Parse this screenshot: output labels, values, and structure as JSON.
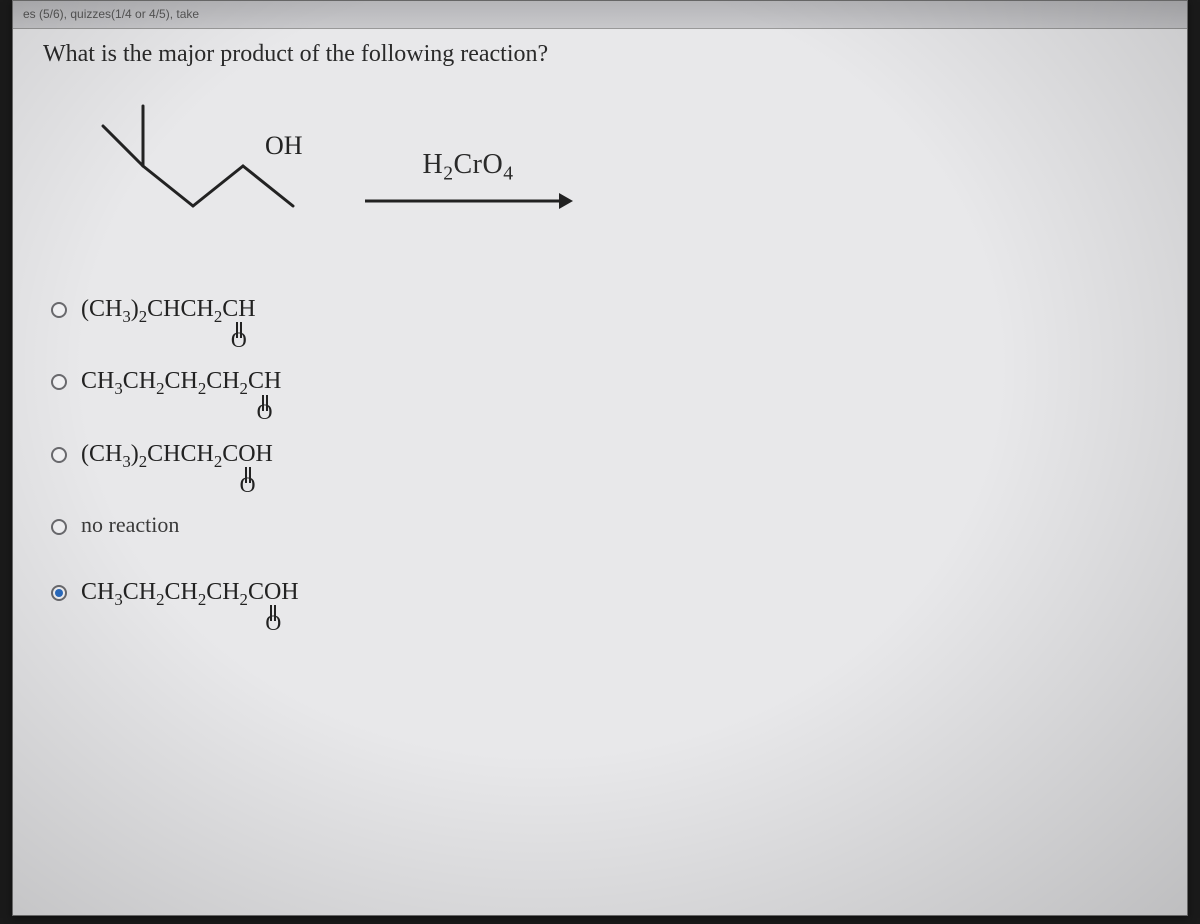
{
  "top_strip": "es (5/6), quizzes(1/4 or 4/5), take",
  "question": "What is the major product of the following reaction?",
  "structure": {
    "oh_label": "OH",
    "line_color": "#222222",
    "line_width": 3
  },
  "reagent": {
    "formula_html": "H<sub class=\"sub\">2</sub>CrO<sub class=\"sub\">4</sub>"
  },
  "arrow": {
    "length": 200,
    "color": "#222222",
    "stroke": 3
  },
  "options": {
    "a": {
      "pre": "(CH",
      "sub1": "3",
      "mid1": ")",
      "sub2": "2",
      "mid2": "CHCH",
      "sub3": "2",
      "tail": "CH",
      "selected": false
    },
    "b": {
      "pre": "CH",
      "sub1": "3",
      "mid1": "CH",
      "sub2": "2",
      "mid2": "CH",
      "sub3": "2",
      "mid3": "CH",
      "sub4": "2",
      "tail": "CH",
      "selected": false
    },
    "c": {
      "pre": "(CH",
      "sub1": "3",
      "mid1": ")",
      "sub2": "2",
      "mid2": "CHCH",
      "sub3": "2",
      "tail": "COH",
      "selected": false
    },
    "d": {
      "text": "no reaction",
      "selected": false
    },
    "e": {
      "pre": "CH",
      "sub1": "3",
      "mid1": "CH",
      "sub2": "2",
      "mid2": "CH",
      "sub3": "2",
      "mid3": "CH",
      "sub4": "2",
      "tail": "COH",
      "selected": true
    }
  },
  "dblO": {
    "label": "O"
  },
  "colors": {
    "paper": "#e8e8ea",
    "text": "#2a2a2a",
    "radio_border": "#6a6a6e",
    "radio_fill": "#2a6bbf"
  }
}
